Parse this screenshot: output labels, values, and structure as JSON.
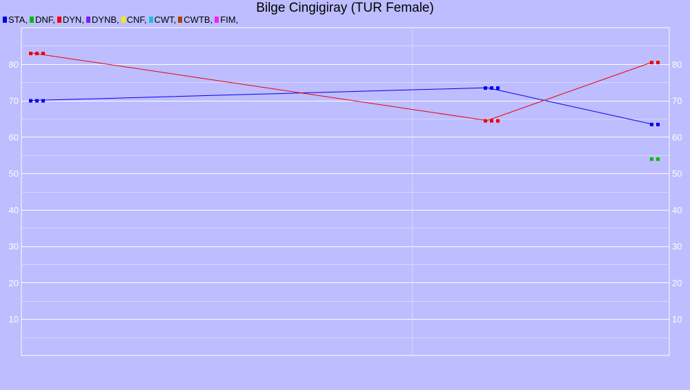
{
  "title": "Bilge Cingigiray (TUR Female)",
  "legend": [
    {
      "label": "STA,",
      "color": "#0000ee"
    },
    {
      "label": "DNF,",
      "color": "#00bb00"
    },
    {
      "label": "DYN,",
      "color": "#ee0000"
    },
    {
      "label": "DYNB,",
      "color": "#7722ee"
    },
    {
      "label": "CNF,",
      "color": "#eeee00"
    },
    {
      "label": "CWT,",
      "color": "#22bbdd"
    },
    {
      "label": "CWTB,",
      "color": "#aa4400"
    },
    {
      "label": "FIM,",
      "color": "#ee22ee"
    }
  ],
  "chart_data": {
    "type": "line",
    "title": "Bilge Cingigiray (TUR Female)",
    "xlabel": "",
    "ylabel": "",
    "x_points": 3,
    "ylim": [
      0,
      90
    ],
    "y_ticks": [
      10,
      20,
      30,
      40,
      50,
      60,
      70,
      80
    ],
    "grid": true,
    "legend_position": "top-left",
    "background": "#bdbdff",
    "series": [
      {
        "name": "STA",
        "color": "#0000ee",
        "values": [
          70,
          73.5,
          63.5
        ],
        "markers": [
          3,
          3,
          2
        ]
      },
      {
        "name": "DNF",
        "color": "#00bb00",
        "values": [
          null,
          null,
          54
        ],
        "markers": [
          0,
          0,
          2
        ]
      },
      {
        "name": "DYN",
        "color": "#ee0000",
        "values": [
          83,
          64.5,
          80.5
        ],
        "markers": [
          3,
          3,
          2
        ]
      }
    ]
  }
}
